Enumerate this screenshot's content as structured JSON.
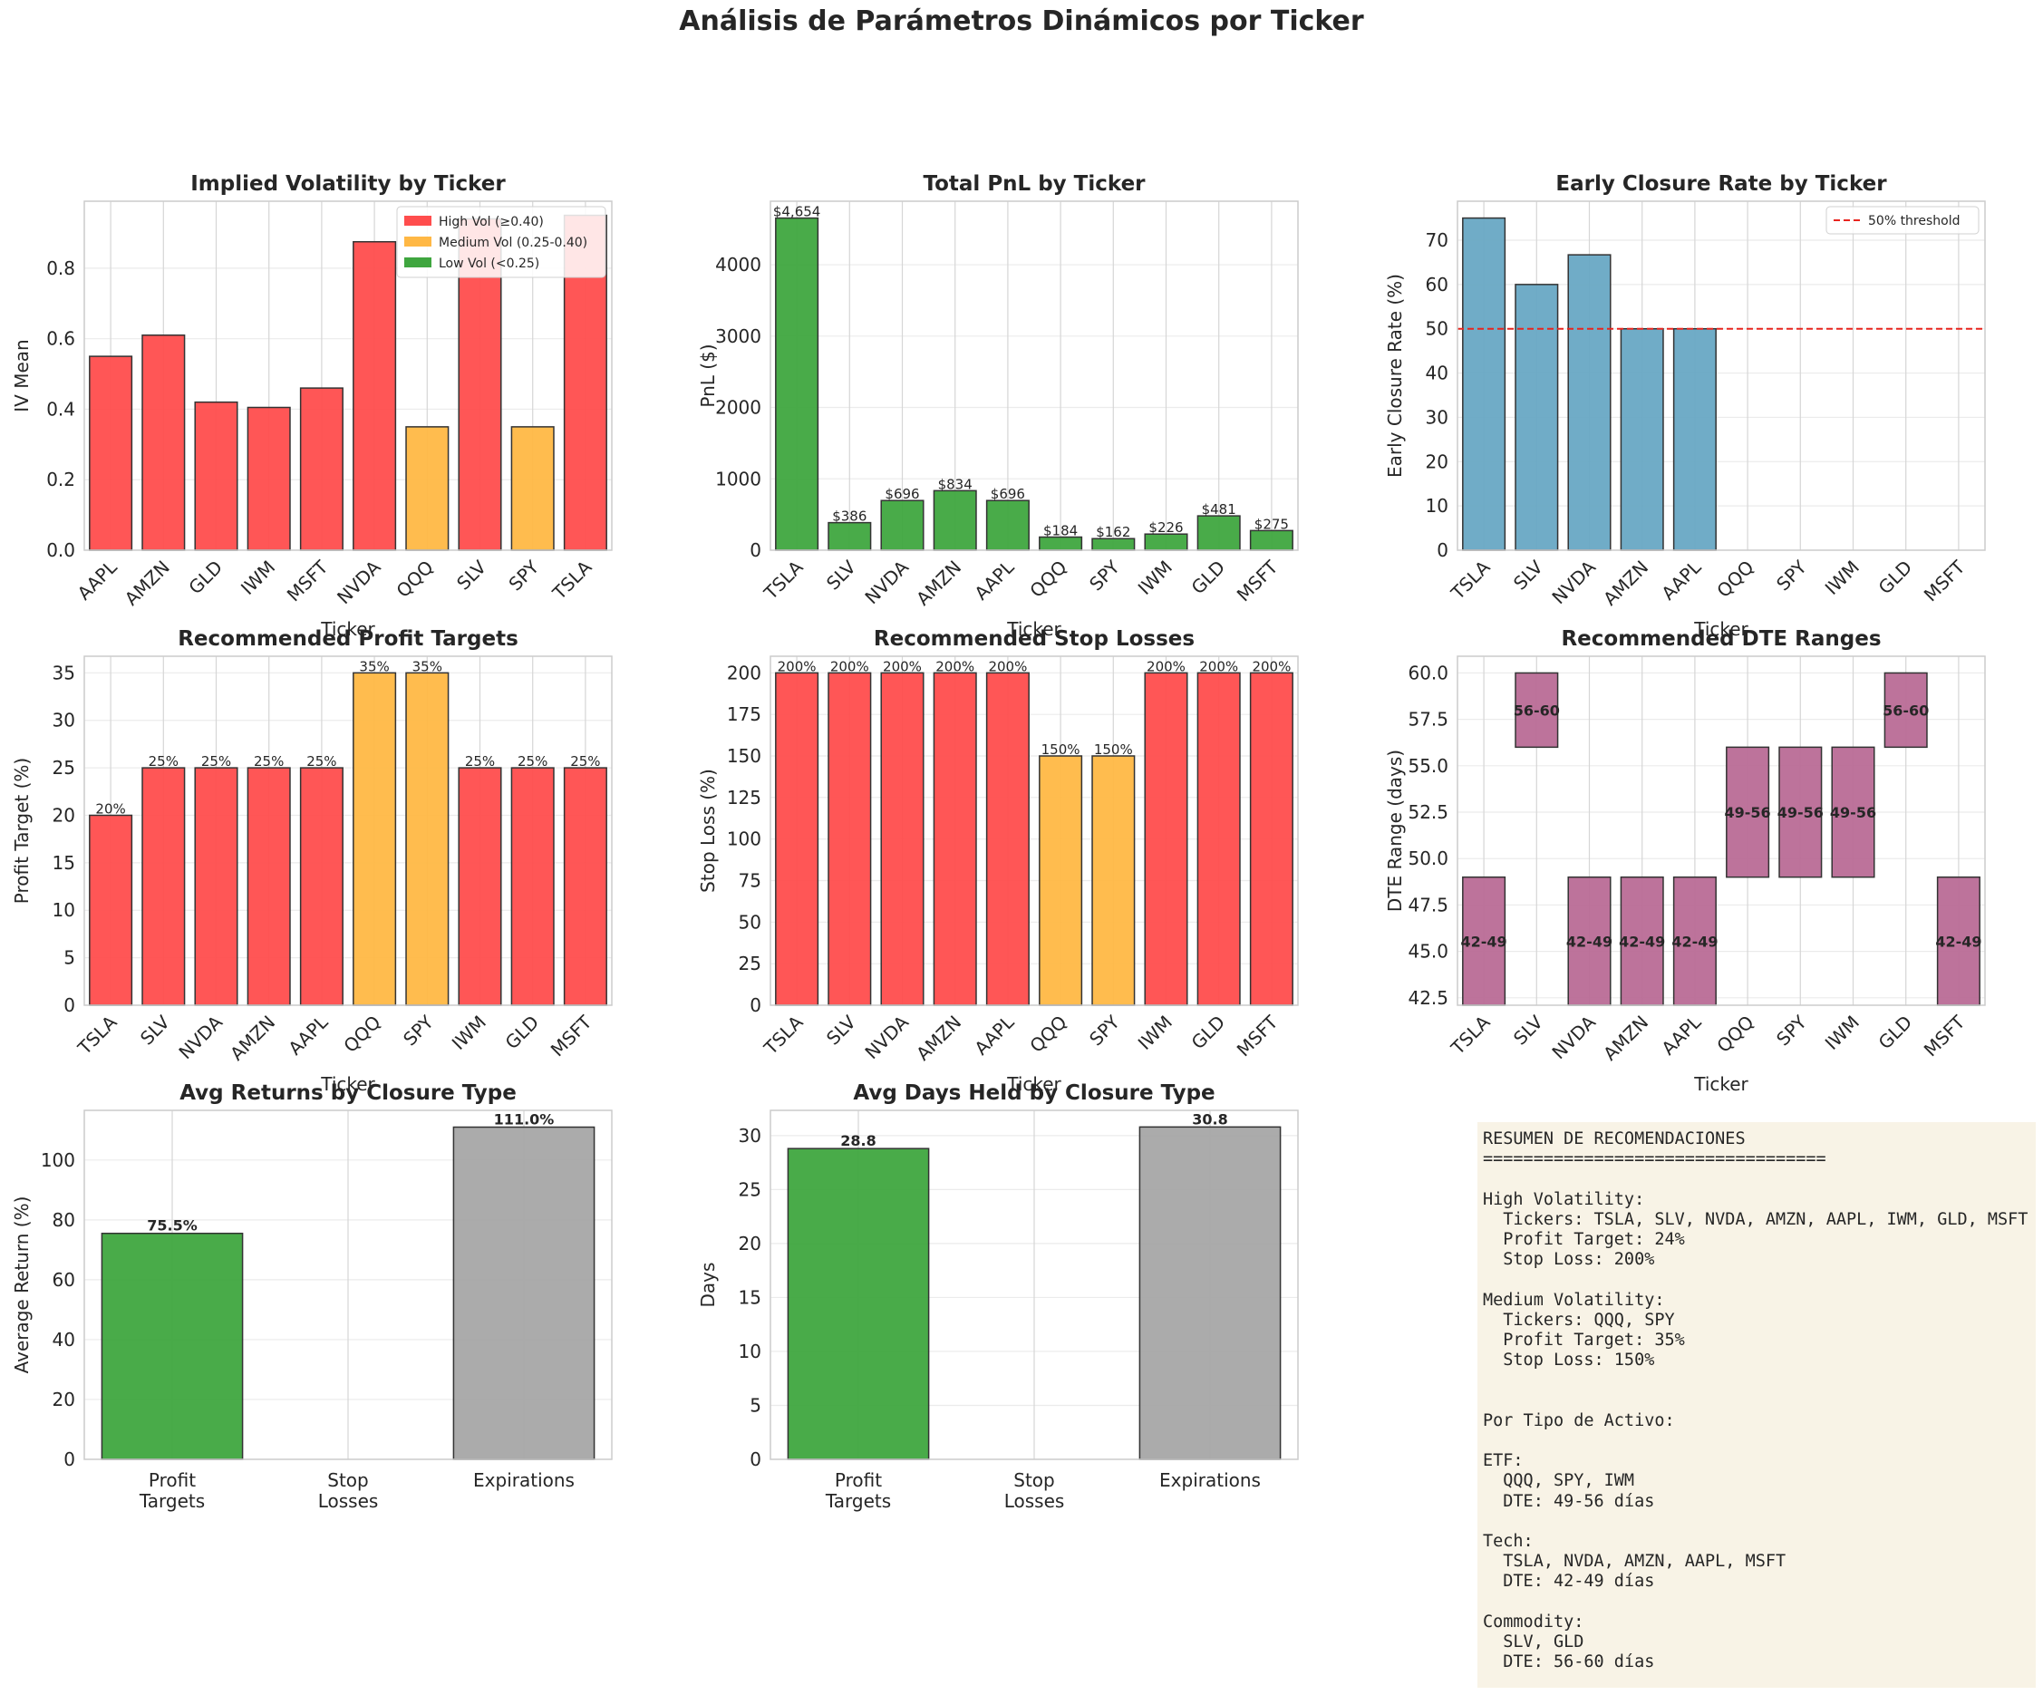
{
  "figure_title": "Análisis de Parámetros Dinámicos por Ticker",
  "colors": {
    "high_vol": "#ff4d4d",
    "medium_vol": "#ffb845",
    "low_vol": "#3fa63f",
    "early_closure": "#68a8c4",
    "dte": "#b96b96",
    "expirations": "#a6a6a6",
    "threshold": "#e8251e",
    "summary_bg": "#f8f3e6"
  },
  "chart_data": [
    {
      "id": "iv",
      "type": "bar",
      "title": "Implied Volatility by Ticker",
      "xlabel": "Ticker",
      "ylabel": "IV Mean",
      "categories": [
        "AAPL",
        "AMZN",
        "GLD",
        "IWM",
        "MSFT",
        "NVDA",
        "QQQ",
        "SLV",
        "SPY",
        "TSLA"
      ],
      "values": [
        0.55,
        0.61,
        0.42,
        0.405,
        0.46,
        0.875,
        0.35,
        0.94,
        0.35,
        0.95
      ],
      "color_keys": [
        "high_vol",
        "high_vol",
        "high_vol",
        "high_vol",
        "high_vol",
        "high_vol",
        "medium_vol",
        "high_vol",
        "medium_vol",
        "high_vol"
      ],
      "ylim": [
        0,
        0.99
      ],
      "yticks": [
        0.0,
        0.2,
        0.4,
        0.6,
        0.8
      ],
      "ytick_labels": [
        "0.0",
        "0.2",
        "0.4",
        "0.6",
        "0.8"
      ],
      "legend": {
        "position": "top-right",
        "items": [
          {
            "label": "High Vol (≥0.40)",
            "color_key": "high_vol"
          },
          {
            "label": "Medium Vol (0.25-0.40)",
            "color_key": "medium_vol"
          },
          {
            "label": "Low Vol (<0.25)",
            "color_key": "low_vol"
          }
        ]
      },
      "grid": true
    },
    {
      "id": "pnl",
      "type": "bar",
      "title": "Total PnL by Ticker",
      "xlabel": "Ticker",
      "ylabel": "PnL ($)",
      "categories": [
        "TSLA",
        "SLV",
        "NVDA",
        "AMZN",
        "AAPL",
        "QQQ",
        "SPY",
        "IWM",
        "GLD",
        "MSFT"
      ],
      "values": [
        4654,
        386,
        696,
        834,
        696,
        184,
        162,
        226,
        481,
        275
      ],
      "labels": [
        "$4,654",
        "$386",
        "$696",
        "$834",
        "$696",
        "$184",
        "$162",
        "$226",
        "$481",
        "$275"
      ],
      "color_keys": [
        "low_vol",
        "low_vol",
        "low_vol",
        "low_vol",
        "low_vol",
        "low_vol",
        "low_vol",
        "low_vol",
        "low_vol",
        "low_vol"
      ],
      "ylim": [
        0,
        4890
      ],
      "yticks": [
        0,
        1000,
        2000,
        3000,
        4000
      ],
      "ytick_labels": [
        "0",
        "1000",
        "2000",
        "3000",
        "4000"
      ],
      "grid": true
    },
    {
      "id": "early",
      "type": "bar",
      "title": "Early Closure Rate by Ticker",
      "xlabel": "Ticker",
      "ylabel": "Early Closure Rate (%)",
      "categories": [
        "TSLA",
        "SLV",
        "NVDA",
        "AMZN",
        "AAPL",
        "QQQ",
        "SPY",
        "IWM",
        "GLD",
        "MSFT"
      ],
      "values": [
        75,
        60,
        66.7,
        50,
        50,
        0,
        0,
        0,
        0,
        0
      ],
      "color_keys": [
        "early_closure",
        "early_closure",
        "early_closure",
        "early_closure",
        "early_closure",
        "early_closure",
        "early_closure",
        "early_closure",
        "early_closure",
        "early_closure"
      ],
      "ylim": [
        0,
        78.8
      ],
      "yticks": [
        0,
        10,
        20,
        30,
        40,
        50,
        60,
        70
      ],
      "ytick_labels": [
        "0",
        "10",
        "20",
        "30",
        "40",
        "50",
        "60",
        "70"
      ],
      "hline": {
        "value": 50,
        "color_key": "threshold",
        "label": "50% threshold"
      },
      "legend": {
        "position": "top-right"
      },
      "grid": true
    },
    {
      "id": "pt",
      "type": "bar",
      "title": "Recommended Profit Targets",
      "xlabel": "Ticker",
      "ylabel": "Profit Target (%)",
      "categories": [
        "TSLA",
        "SLV",
        "NVDA",
        "AMZN",
        "AAPL",
        "QQQ",
        "SPY",
        "IWM",
        "GLD",
        "MSFT"
      ],
      "values": [
        20,
        25,
        25,
        25,
        25,
        35,
        35,
        25,
        25,
        25
      ],
      "labels": [
        "20%",
        "25%",
        "25%",
        "25%",
        "25%",
        "35%",
        "35%",
        "25%",
        "25%",
        "25%"
      ],
      "color_keys": [
        "high_vol",
        "high_vol",
        "high_vol",
        "high_vol",
        "high_vol",
        "medium_vol",
        "medium_vol",
        "high_vol",
        "high_vol",
        "high_vol"
      ],
      "ylim": [
        0,
        36.75
      ],
      "yticks": [
        0,
        5,
        10,
        15,
        20,
        25,
        30,
        35
      ],
      "ytick_labels": [
        "0",
        "5",
        "10",
        "15",
        "20",
        "25",
        "30",
        "35"
      ],
      "grid": true
    },
    {
      "id": "sl",
      "type": "bar",
      "title": "Recommended Stop Losses",
      "xlabel": "Ticker",
      "ylabel": "Stop Loss (%)",
      "categories": [
        "TSLA",
        "SLV",
        "NVDA",
        "AMZN",
        "AAPL",
        "QQQ",
        "SPY",
        "IWM",
        "GLD",
        "MSFT"
      ],
      "values": [
        200,
        200,
        200,
        200,
        200,
        150,
        150,
        200,
        200,
        200
      ],
      "labels": [
        "200%",
        "200%",
        "200%",
        "200%",
        "200%",
        "150%",
        "150%",
        "200%",
        "200%",
        "200%"
      ],
      "color_keys": [
        "high_vol",
        "high_vol",
        "high_vol",
        "high_vol",
        "high_vol",
        "medium_vol",
        "medium_vol",
        "high_vol",
        "high_vol",
        "high_vol"
      ],
      "ylim": [
        0,
        210
      ],
      "yticks": [
        0,
        25,
        50,
        75,
        100,
        125,
        150,
        175,
        200
      ],
      "ytick_labels": [
        "0",
        "25",
        "50",
        "75",
        "100",
        "125",
        "150",
        "175",
        "200"
      ],
      "grid": true
    },
    {
      "id": "dte",
      "type": "bar",
      "title": "Recommended DTE Ranges",
      "xlabel": "Ticker",
      "ylabel": "DTE Range (days)",
      "categories": [
        "TSLA",
        "SLV",
        "NVDA",
        "AMZN",
        "AAPL",
        "QQQ",
        "SPY",
        "IWM",
        "GLD",
        "MSFT"
      ],
      "ranges": [
        [
          42,
          49
        ],
        [
          56,
          60
        ],
        [
          42,
          49
        ],
        [
          42,
          49
        ],
        [
          42,
          49
        ],
        [
          49,
          56
        ],
        [
          49,
          56
        ],
        [
          49,
          56
        ],
        [
          56,
          60
        ],
        [
          42,
          49
        ]
      ],
      "labels": [
        "42-49",
        "56-60",
        "42-49",
        "42-49",
        "42-49",
        "49-56",
        "49-56",
        "49-56",
        "56-60",
        "42-49"
      ],
      "color_keys": [
        "dte",
        "dte",
        "dte",
        "dte",
        "dte",
        "dte",
        "dte",
        "dte",
        "dte",
        "dte"
      ],
      "ylim": [
        42.1,
        60.9
      ],
      "yticks": [
        42.5,
        45.0,
        47.5,
        50.0,
        52.5,
        55.0,
        57.5,
        60.0
      ],
      "ytick_labels": [
        "42.5",
        "45.0",
        "47.5",
        "50.0",
        "52.5",
        "55.0",
        "57.5",
        "60.0"
      ],
      "grid": true
    },
    {
      "id": "ret",
      "type": "bar",
      "title": "Avg Returns by Closure Type",
      "xlabel": "",
      "ylabel": "Average Return (%)",
      "categories": [
        "Profit\nTargets",
        "Stop\nLosses",
        "Expirations"
      ],
      "values": [
        75.5,
        0,
        111.0
      ],
      "labels": [
        "75.5%",
        "",
        "111.0%"
      ],
      "color_keys": [
        "low_vol",
        "high_vol",
        "expirations"
      ],
      "ylim": [
        0,
        116.6
      ],
      "yticks": [
        0,
        20,
        40,
        60,
        80,
        100
      ],
      "ytick_labels": [
        "0",
        "20",
        "40",
        "60",
        "80",
        "100"
      ],
      "grid": true
    },
    {
      "id": "days",
      "type": "bar",
      "title": "Avg Days Held by Closure Type",
      "xlabel": "",
      "ylabel": "Days",
      "categories": [
        "Profit\nTargets",
        "Stop\nLosses",
        "Expirations"
      ],
      "values": [
        28.8,
        0,
        30.8
      ],
      "labels": [
        "28.8",
        "",
        "30.8"
      ],
      "color_keys": [
        "low_vol",
        "high_vol",
        "expirations"
      ],
      "ylim": [
        0,
        32.34
      ],
      "yticks": [
        0,
        5,
        10,
        15,
        20,
        25,
        30
      ],
      "ytick_labels": [
        "0",
        "5",
        "10",
        "15",
        "20",
        "25",
        "30"
      ],
      "grid": true
    }
  ],
  "summary_text": "RESUMEN DE RECOMENDACIONES\n==================================\n\nHigh Volatility:\n  Tickers: TSLA, SLV, NVDA, AMZN, AAPL, IWM, GLD, MSFT\n  Profit Target: 24%\n  Stop Loss: 200%\n\nMedium Volatility:\n  Tickers: QQQ, SPY\n  Profit Target: 35%\n  Stop Loss: 150%\n\n\nPor Tipo de Activo:\n\nETF:\n  QQQ, SPY, IWM\n  DTE: 49-56 días\n\nTech:\n  TSLA, NVDA, AMZN, AAPL, MSFT\n  DTE: 42-49 días\n\nCommodity:\n  SLV, GLD\n  DTE: 56-60 días"
}
